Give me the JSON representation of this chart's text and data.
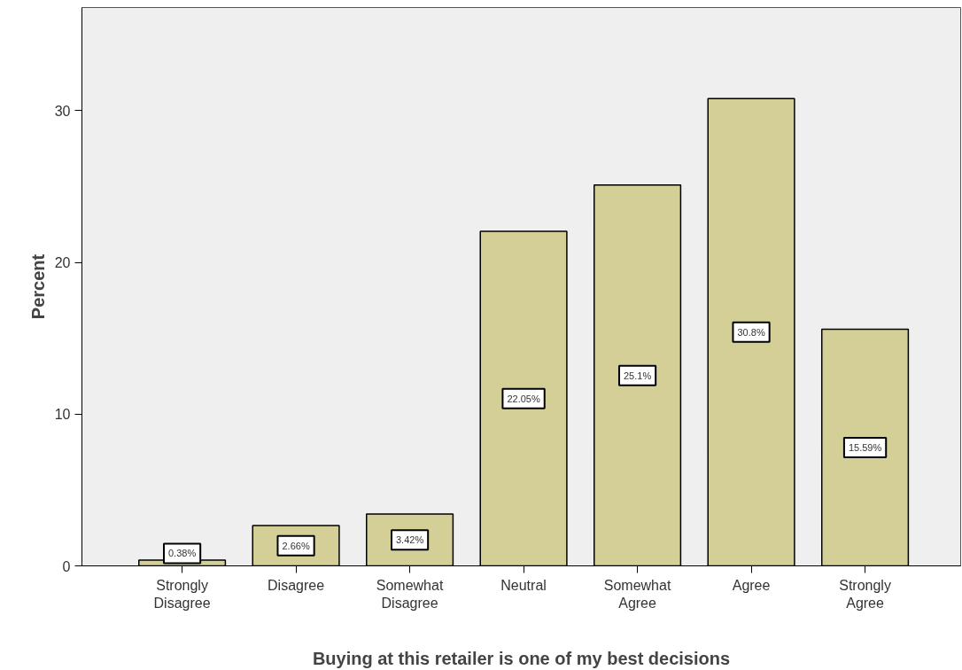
{
  "chart_data": {
    "type": "bar",
    "xlabel": "Buying at this retailer is one of my best decisions",
    "ylabel": "Percent",
    "categories": [
      "Strongly Disagree",
      "Disagree",
      "Somewhat Disagree",
      "Neutral",
      "Somewhat Agree",
      "Agree",
      "Strongly Agree"
    ],
    "values": [
      0.38,
      2.66,
      3.42,
      22.05,
      25.1,
      30.8,
      15.59
    ],
    "value_labels": [
      "0.38%",
      "2.66%",
      "3.42%",
      "22.05%",
      "25.1%",
      "30.8%",
      "15.59%"
    ],
    "color": "#d3cf96",
    "ylim": [
      0,
      36.8
    ],
    "yticks": [
      0,
      10,
      20,
      30
    ],
    "grid": false
  }
}
